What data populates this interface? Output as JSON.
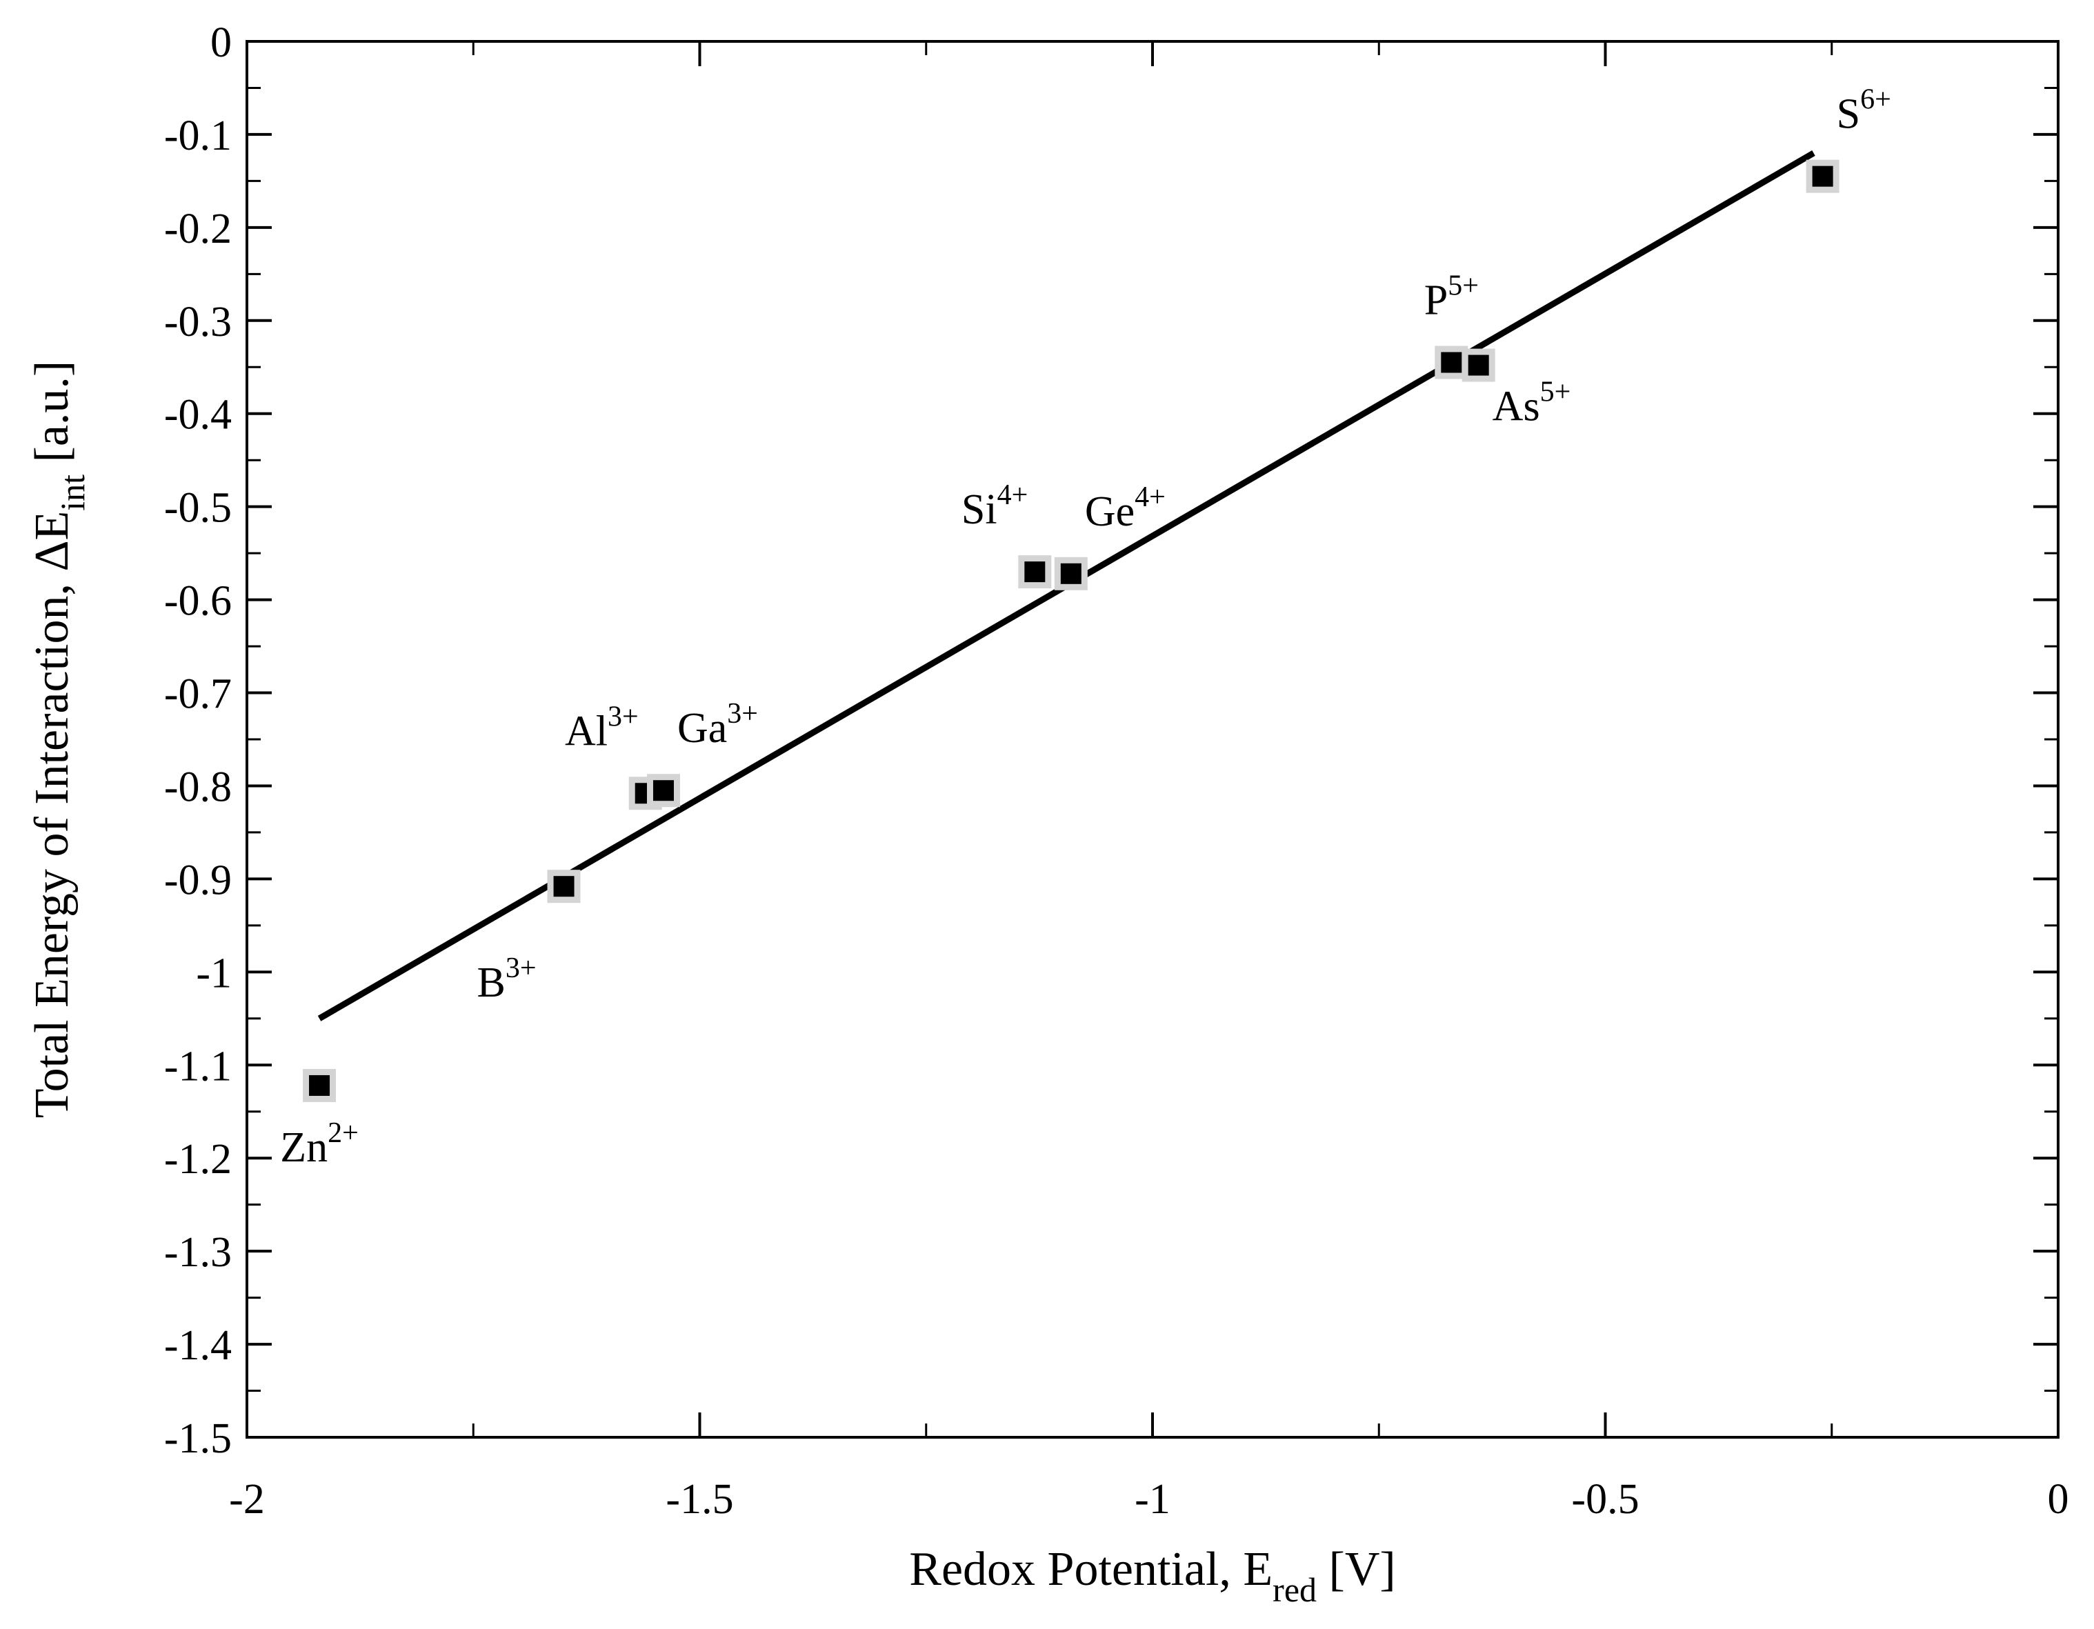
{
  "chart_data": {
    "type": "scatter",
    "title": "",
    "xlabel": "Redox Potential, E",
    "xlabel_sub": "red",
    "xlabel_unit": " [V]",
    "ylabel": "Total Energy of Interaction,  ΔE",
    "ylabel_sub": "int",
    "ylabel_unit": " [a.u.]",
    "xlim": [
      -2,
      0
    ],
    "ylim": [
      -1.5,
      0
    ],
    "x_ticks": [
      -2,
      -1.5,
      -1,
      -0.5,
      0
    ],
    "x_tick_labels": [
      "-2",
      "-1.5",
      "-1",
      "-0.5",
      "0"
    ],
    "y_ticks": [
      0,
      -0.1,
      -0.2,
      -0.3,
      -0.4,
      -0.5,
      -0.6,
      -0.7,
      -0.8,
      -0.9,
      -1,
      -1.1,
      -1.2,
      -1.3,
      -1.4,
      -1.5
    ],
    "y_tick_labels": [
      "0",
      "-0.1",
      "-0.2",
      "-0.3",
      "-0.4",
      "-0.5",
      "-0.6",
      "-0.7",
      "-0.8",
      "-0.9",
      "-1",
      "-1.1",
      "-1.2",
      "-1.3",
      "-1.4",
      "-1.5"
    ],
    "grid": false,
    "points": [
      {
        "base": "Zn",
        "charge": "2+",
        "x": -1.92,
        "y": -1.122,
        "label_pos": "below"
      },
      {
        "base": "B",
        "charge": "3+",
        "x": -1.65,
        "y": -0.908,
        "label_pos": "below-left"
      },
      {
        "base": "Al",
        "charge": "3+",
        "x": -1.56,
        "y": -0.808,
        "label_pos": "above-left"
      },
      {
        "base": "Ga",
        "charge": "3+",
        "x": -1.54,
        "y": -0.805,
        "label_pos": "above-right"
      },
      {
        "base": "Si",
        "charge": "4+",
        "x": -1.13,
        "y": -0.57,
        "label_pos": "above-left"
      },
      {
        "base": "Ge",
        "charge": "4+",
        "x": -1.09,
        "y": -0.572,
        "label_pos": "above-right"
      },
      {
        "base": "P",
        "charge": "5+",
        "x": -0.67,
        "y": -0.345,
        "label_pos": "above"
      },
      {
        "base": "As",
        "charge": "5+",
        "x": -0.64,
        "y": -0.348,
        "label_pos": "below-right"
      },
      {
        "base": "S",
        "charge": "6+",
        "x": -0.26,
        "y": -0.145,
        "label_pos": "above-right"
      }
    ],
    "fit_line": {
      "x": [
        -1.92,
        -0.27
      ],
      "y": [
        -1.05,
        -0.12
      ]
    }
  }
}
